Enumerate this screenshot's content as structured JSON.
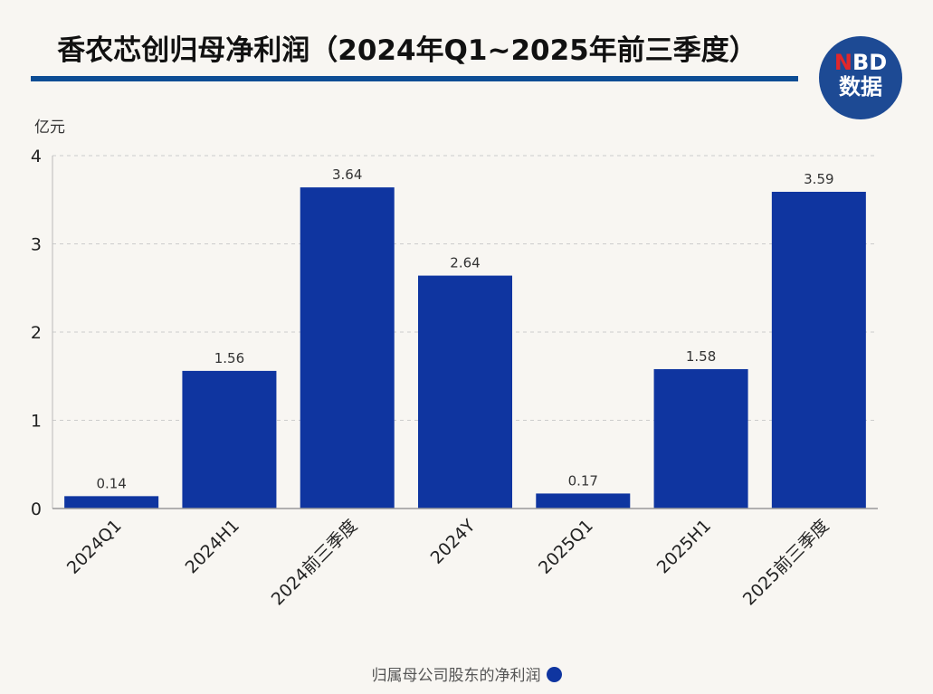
{
  "title": "香农芯创归母净利润（2024年Q1~2025年前三季度）",
  "logo": {
    "top": "NBD",
    "bottom": "数据"
  },
  "chart_data": {
    "type": "bar",
    "title": "香农芯创归母净利润（2024年Q1~2025年前三季度）",
    "ylabel": "亿元",
    "xlabel": "",
    "ylim": [
      0,
      4
    ],
    "yticks": [
      0,
      1,
      2,
      3,
      4
    ],
    "grid": true,
    "legend_position": "bottom",
    "categories": [
      "2024Q1",
      "2024H1",
      "2024前三季度",
      "2024Y",
      "2025Q1",
      "2025H1",
      "2025前三季度"
    ],
    "series": [
      {
        "name": "归属母公司股东的净利润",
        "values": [
          0.14,
          1.56,
          3.64,
          2.64,
          0.17,
          1.58,
          3.59
        ],
        "color": "#0f35a0"
      }
    ],
    "data_labels": [
      "0.14",
      "1.56",
      "3.64",
      "2.64",
      "0.17",
      "1.58",
      "3.59"
    ]
  }
}
